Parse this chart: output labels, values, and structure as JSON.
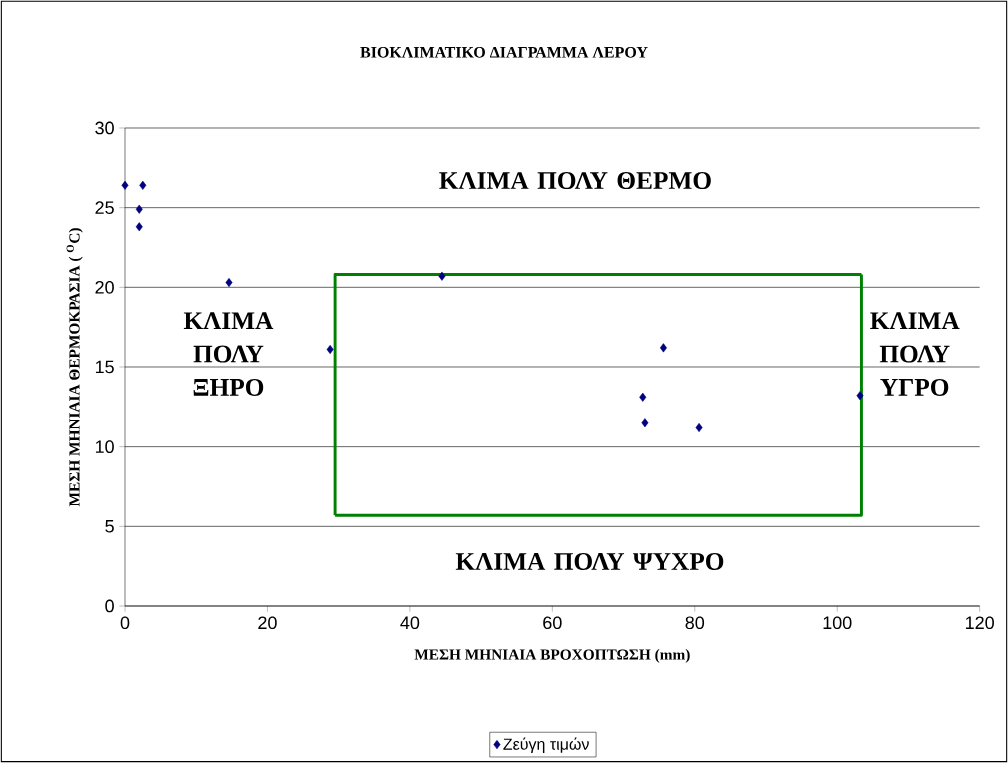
{
  "chart_data": {
    "type": "scatter",
    "title": "ΒΙΟΚΛΙΜΑΤΙΚΟ ΔΙΑΓΡΑΜΜΑ ΛΕΡΟΥ",
    "xlabel": "ΜΕΣΗ ΜΗΝΙΑΙΑ ΒΡΟΧΟΠΤΩΣΗ (mm)",
    "ylabel": "ΜΕΣΗ ΜΗΝΙΑΙΑ ΘΕΡΜΟΚΡΑΣΙΑ ( $^{O}$C)",
    "xlim": [
      0,
      120
    ],
    "xticks": [
      0,
      20,
      40,
      60,
      80,
      100,
      120
    ],
    "ylim": [
      0,
      30
    ],
    "yticks": [
      0,
      5,
      10,
      15,
      20,
      25,
      30
    ],
    "grid": "y",
    "legend": "bottom",
    "marker": "diamond",
    "series": [
      {
        "name": "Ζεύγη τιμών",
        "color": "#000080",
        "x": [
          0,
          2.5,
          2,
          2,
          14.6,
          28.8,
          44.5,
          75.6,
          72.7,
          73,
          80.6,
          103.2
        ],
        "values": [
          26.4,
          26.4,
          24.9,
          23.8,
          20.3,
          16.1,
          20.7,
          16.2,
          13.1,
          11.5,
          11.2,
          13.2
        ]
      },
      {
        "type": "line",
        "marker": "none",
        "color": "#008000",
        "x": [
          29.5,
          29.5,
          103.4
        ],
        "values": [
          5.7,
          20.8,
          20.8
        ]
      },
      {
        "type": "line",
        "marker": "none",
        "color": "#008000",
        "x": [
          29.5,
          103.4,
          103.4
        ],
        "values": [
          5.7,
          5.7,
          20.8
        ]
      }
    ],
    "annotations": [
      "ΚΛΙΜΑ ΠΟΛΥ ΘΕΡΜΟ",
      "ΚΛΙΜΑ ΠΟΛΥ ΨΥΧΡΟ",
      "ΚΛΙΜΑ ΠΟΛΥ ΞΗΡΟ",
      "ΚΛΙΜΑ ΠΟΛΥ ΥΓΡΟ"
    ]
  }
}
